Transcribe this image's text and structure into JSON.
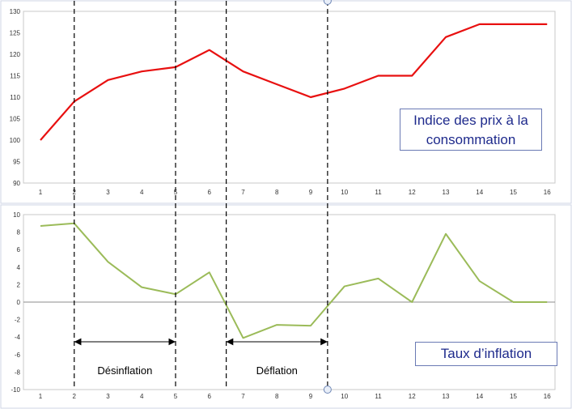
{
  "chart_data": [
    {
      "type": "line",
      "title": "",
      "legend_text": "Indice des prix à la consommation",
      "categories": [
        "1",
        "2",
        "3",
        "4",
        "5",
        "6",
        "7",
        "8",
        "9",
        "10",
        "11",
        "12",
        "13",
        "14",
        "15",
        "16"
      ],
      "series": [
        {
          "name": "Indice des prix à la consommation",
          "color": "#e81010",
          "values": [
            100,
            109,
            114,
            116,
            117,
            121,
            116,
            113,
            110,
            112,
            115,
            115,
            124,
            127,
            127,
            127
          ]
        }
      ],
      "ylim": [
        90,
        130
      ],
      "yticks": [
        90,
        95,
        100,
        105,
        110,
        115,
        120,
        125,
        130
      ],
      "xlabel": "",
      "ylabel": "",
      "grid": false,
      "legend_position": "right"
    },
    {
      "type": "line",
      "title": "",
      "legend_text": "Taux d’inflation",
      "categories": [
        "1",
        "2",
        "3",
        "4",
        "5",
        "6",
        "7",
        "8",
        "9",
        "10",
        "11",
        "12",
        "13",
        "14",
        "15",
        "16"
      ],
      "series": [
        {
          "name": "Taux d’inflation",
          "color": "#9bbb59",
          "values": [
            8.7,
            9.0,
            4.6,
            1.7,
            0.9,
            3.4,
            -4.1,
            -2.6,
            -2.7,
            1.8,
            2.7,
            0,
            7.8,
            2.4,
            0,
            0
          ]
        }
      ],
      "ylim": [
        -10,
        10
      ],
      "yticks": [
        -10,
        -8,
        -6,
        -4,
        -2,
        0,
        2,
        4,
        6,
        8,
        10
      ],
      "xlabel": "",
      "ylabel": "",
      "grid": false,
      "legend_position": "bottom-right"
    }
  ],
  "annotations": {
    "dashed_lines_x": [
      2,
      5,
      6.5,
      9.5
    ],
    "ranges": [
      {
        "label": "Désinflation",
        "from": 2,
        "to": 5
      },
      {
        "label": "Déflation",
        "from": 6.5,
        "to": 9.5
      }
    ]
  }
}
